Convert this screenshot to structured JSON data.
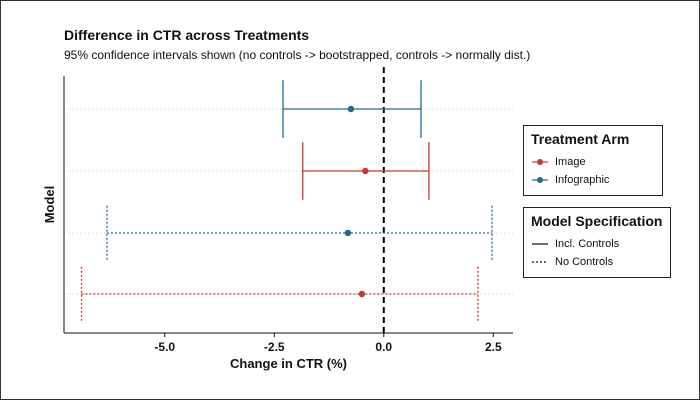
{
  "chart_data": {
    "type": "forest",
    "title": "Difference in CTR across Treatments",
    "subtitle": "95% confidence intervals shown (no controls -> bootstrapped, controls -> normally dist.)",
    "xlabel": "Change in CTR (%)",
    "ylabel": "Model",
    "xlim": [
      -7.3,
      2.95
    ],
    "xticks": [
      -5.0,
      -2.5,
      0.0,
      2.5
    ],
    "xtick_labels": [
      "-5.0",
      "-2.5",
      "0.0",
      "2.5"
    ],
    "reference_line": 0,
    "rows": [
      {
        "arm": "Infographic",
        "spec": "Incl. Controls",
        "estimate": -0.75,
        "lower": -2.3,
        "upper": 0.85
      },
      {
        "arm": "Image",
        "spec": "Incl. Controls",
        "estimate": -0.42,
        "lower": -1.85,
        "upper": 1.03
      },
      {
        "arm": "Infographic",
        "spec": "No Controls",
        "estimate": -0.82,
        "lower": -6.32,
        "upper": 2.47
      },
      {
        "arm": "Image",
        "spec": "No Controls",
        "estimate": -0.5,
        "lower": -6.9,
        "upper": 2.15
      }
    ],
    "colors": {
      "Image": "#c8382e",
      "Infographic": "#1f6b91"
    },
    "grid_y": true
  },
  "legends": {
    "arm": {
      "title": "Treatment Arm",
      "items": [
        {
          "label": "Image",
          "color": "#c8382e"
        },
        {
          "label": "Infographic",
          "color": "#1f6b91"
        }
      ]
    },
    "spec": {
      "title": "Model Specification",
      "items": [
        {
          "label": "Incl. Controls",
          "style": "solid"
        },
        {
          "label": "No Controls",
          "style": "dotted"
        }
      ]
    }
  }
}
